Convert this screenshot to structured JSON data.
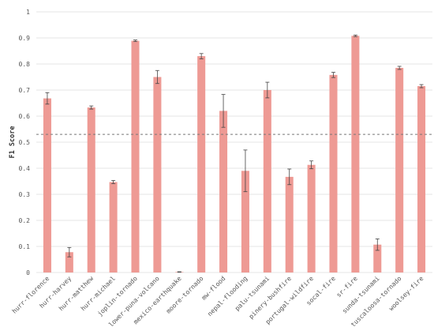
{
  "chart_data": {
    "type": "bar",
    "ylabel": "F1 Score",
    "xlabel": "",
    "ylim": [
      0,
      1
    ],
    "yticks": [
      0,
      0.1,
      0.2,
      0.3,
      0.4,
      0.5,
      0.6,
      0.7,
      0.8,
      0.9,
      1
    ],
    "ytick_labels": [
      "0",
      "0.1",
      "0.2",
      "0.3",
      "0.4",
      "0.5",
      "0.6",
      "0.7",
      "0.8",
      "0.9",
      "1"
    ],
    "grid": "horizontal",
    "reference_line": 0.53,
    "bar_color": "#ee9a94",
    "categories": [
      "hurr-florence",
      "hurr-harvey",
      "hurr-matthew",
      "hurr-michael",
      "joplin-tornado",
      "lower-puna-volcano",
      "mexico-earthquake",
      "moore-tornado",
      "mw-flood",
      "nepal-flooding",
      "palu-tsunami",
      "pinery-bushfire",
      "portugal-wildfire",
      "socal-fire",
      "sr-fire",
      "sunda-tsunami",
      "tuscaloosa-tornado",
      "woolsey-fire"
    ],
    "values": [
      0.668,
      0.078,
      0.633,
      0.347,
      0.889,
      0.75,
      0.002,
      0.83,
      0.62,
      0.39,
      0.7,
      0.367,
      0.413,
      0.758,
      0.908,
      0.107,
      0.785,
      0.715
    ],
    "errors": [
      0.022,
      0.018,
      0.006,
      0.006,
      0.003,
      0.025,
      0.001,
      0.01,
      0.063,
      0.08,
      0.03,
      0.03,
      0.015,
      0.01,
      0.003,
      0.022,
      0.006,
      0.006
    ]
  }
}
